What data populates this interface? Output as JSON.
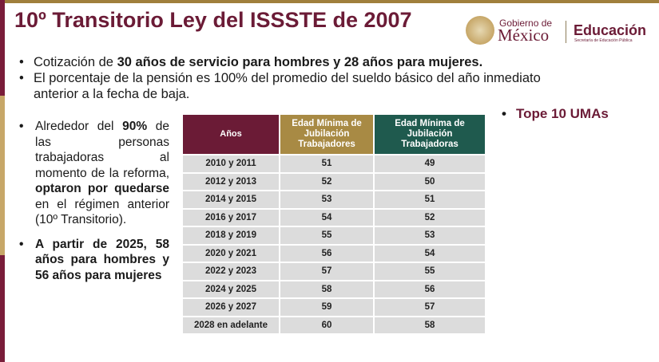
{
  "title": "10º Transitorio Ley del ISSSTE de 2007",
  "logos": {
    "gobierno_small": "Gobierno de",
    "gobierno_big": "México",
    "educacion": "Educación",
    "educacion_sub": "Secretaría de Educación Pública"
  },
  "top_bullets": {
    "b1_pre": "Cotización de ",
    "b1_bold": "30 años de servicio para hombres y 28 años para mujeres.",
    "b2": "El porcentaje de la pensión es 100% del promedio del sueldo básico del año inmediato anterior a la fecha de baja."
  },
  "left_bullets": {
    "b1_pre": "Alrededor del ",
    "b1_bold1": "90%",
    "b1_mid": " de las personas trabajadoras al momento de la reforma, ",
    "b1_bold2": "optaron por quedarse",
    "b1_post": " en el régimen anterior (10º Transitorio).",
    "b2": "A partir de 2025, 58 años para hombres y 56 años para mujeres"
  },
  "tope": "Tope 10 UMAs",
  "table": {
    "headers": {
      "years": "Años",
      "men": "Edad Mínima de Jubilación Trabajadores",
      "women": "Edad Mínima de Jubilación Trabajadoras"
    },
    "rows": [
      {
        "years": "2010 y 2011",
        "men": "51",
        "women": "49"
      },
      {
        "years": "2012 y 2013",
        "men": "52",
        "women": "50"
      },
      {
        "years": "2014 y 2015",
        "men": "53",
        "women": "51"
      },
      {
        "years": "2016 y 2017",
        "men": "54",
        "women": "52"
      },
      {
        "years": "2018 y 2019",
        "men": "55",
        "women": "53"
      },
      {
        "years": "2020 y 2021",
        "men": "56",
        "women": "54"
      },
      {
        "years": "2022 y 2023",
        "men": "57",
        "women": "55"
      },
      {
        "years": "2024 y 2025",
        "men": "58",
        "women": "56"
      },
      {
        "years": "2026 y 2027",
        "men": "59",
        "women": "57"
      },
      {
        "years": "2028 en adelante",
        "men": "60",
        "women": "58"
      }
    ]
  }
}
